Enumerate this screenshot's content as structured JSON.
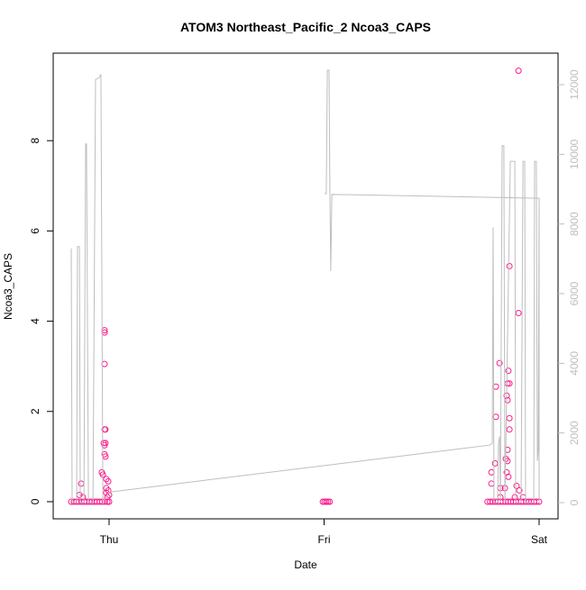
{
  "chart_data": {
    "type": "scatter",
    "title": "ATOM3 Northeast_Pacific_2 Ncoa3_CAPS",
    "xlabel": "Date",
    "ylabel": "Ncoa3_CAPS",
    "xlim": [
      -0.26,
      2.088
    ],
    "xticks": [
      {
        "value": 0,
        "label": "Thu"
      },
      {
        "value": 1,
        "label": "Fri"
      },
      {
        "value": 2,
        "label": "Sat"
      }
    ],
    "ylim": [
      -0.38,
      9.94
    ],
    "yticks": [
      0,
      2,
      4,
      6,
      8
    ],
    "y2lim": [
      -466,
      12906
    ],
    "y2ticks": [
      0,
      2000,
      4000,
      6000,
      8000,
      10000,
      12000
    ],
    "y2color": "#bebebe",
    "series": [
      {
        "type": "scatter",
        "color": "#ff1a8c",
        "x": [
          -0.176,
          -0.164,
          -0.152,
          -0.14,
          -0.128,
          -0.116,
          -0.104,
          -0.092,
          -0.08,
          -0.068,
          -0.056,
          -0.044,
          -0.032,
          -0.02,
          -0.008,
          0,
          -0.13,
          -0.138,
          -0.122,
          -0.034,
          -0.029,
          -0.025,
          -0.021,
          -0.017,
          -0.021,
          -0.017,
          -0.021,
          -0.021,
          -0.021,
          -0.021,
          -0.017,
          -0.013,
          -0.013,
          -0.013,
          -0.008,
          -0.004,
          -0.004,
          0,
          0.994,
          1.002,
          1.01,
          1.018,
          1.026,
          1.76,
          1.772,
          1.784,
          1.796,
          1.808,
          1.82,
          1.832,
          1.844,
          1.856,
          1.868,
          1.88,
          1.892,
          1.904,
          1.916,
          1.928,
          1.94,
          1.952,
          1.964,
          1.976,
          1.988,
          2.0,
          1.778,
          1.778,
          1.799,
          1.799,
          1.795,
          1.816,
          1.82,
          1.845,
          1.849,
          1.853,
          1.857,
          1.862,
          1.853,
          1.862,
          1.862,
          1.862,
          1.853,
          1.853,
          1.849,
          1.857,
          1.904,
          1.904,
          1.895,
          1.887,
          1.908,
          1.925,
          1.82,
          1.841
        ],
        "values": [
          0,
          0,
          0,
          0,
          0,
          0,
          0,
          0,
          0,
          0,
          0,
          0,
          0,
          0,
          0,
          0,
          0.4,
          0.15,
          0.1,
          0.65,
          0.6,
          1.3,
          1.25,
          1.3,
          1.05,
          1.0,
          3.75,
          3.8,
          3.05,
          1.6,
          1.6,
          0.5,
          0.3,
          0.2,
          0.1,
          0.25,
          0.45,
          0.15,
          0,
          0,
          0,
          0,
          0,
          0,
          0,
          0,
          0,
          0,
          0,
          0,
          0,
          0,
          0,
          0,
          0,
          0,
          0,
          0,
          0,
          0,
          0,
          0,
          0,
          0,
          0.65,
          0.4,
          2.55,
          1.88,
          0.85,
          3.07,
          0.1,
          0.95,
          2.35,
          2.25,
          2.9,
          5.22,
          2.62,
          2.62,
          1.85,
          1.6,
          1.15,
          0.9,
          0.65,
          0.55,
          9.55,
          4.18,
          0.35,
          0.1,
          0.25,
          0.1,
          0.3,
          0.3
        ]
      },
      {
        "type": "line",
        "axis": "y2",
        "color": "#bebebe",
        "x": [
          -0.176,
          -0.176,
          -0.172,
          -0.151,
          -0.147,
          -0.138,
          -0.134,
          -0.117,
          -0.109,
          -0.105,
          -0.096,
          -0.075,
          -0.063,
          -0.046,
          -0.038,
          -0.034,
          -0.029,
          0,
          1.769,
          1.782,
          1.786,
          1.79,
          1.807,
          1.811,
          1.816,
          1.82,
          1.828,
          1.836,
          1.841,
          1.866,
          1.887,
          1.891,
          1.916,
          1.925,
          1.933,
          1.937,
          1.975,
          1.979,
          1.987,
          1.992,
          1.996,
          2.0,
          null,
          1.002,
          1.01,
          1.015,
          1.023,
          1.027,
          1.031,
          1.036,
          2.0,
          2.0
        ],
        "values": [
          6700,
          7300,
          0,
          0,
          7350,
          7350,
          0,
          0,
          10300,
          10300,
          0,
          0,
          12150,
          12200,
          12300,
          6900,
          0,
          300,
          1650,
          1700,
          7900,
          0,
          0,
          1700,
          1900,
          0,
          10250,
          10250,
          0,
          9800,
          9800,
          0,
          0,
          9800,
          9800,
          0,
          0,
          9800,
          9800,
          1200,
          1500,
          8740,
          null,
          8870,
          8870,
          12414,
          12414,
          8850,
          6650,
          8850,
          8740,
          0
        ]
      }
    ]
  }
}
